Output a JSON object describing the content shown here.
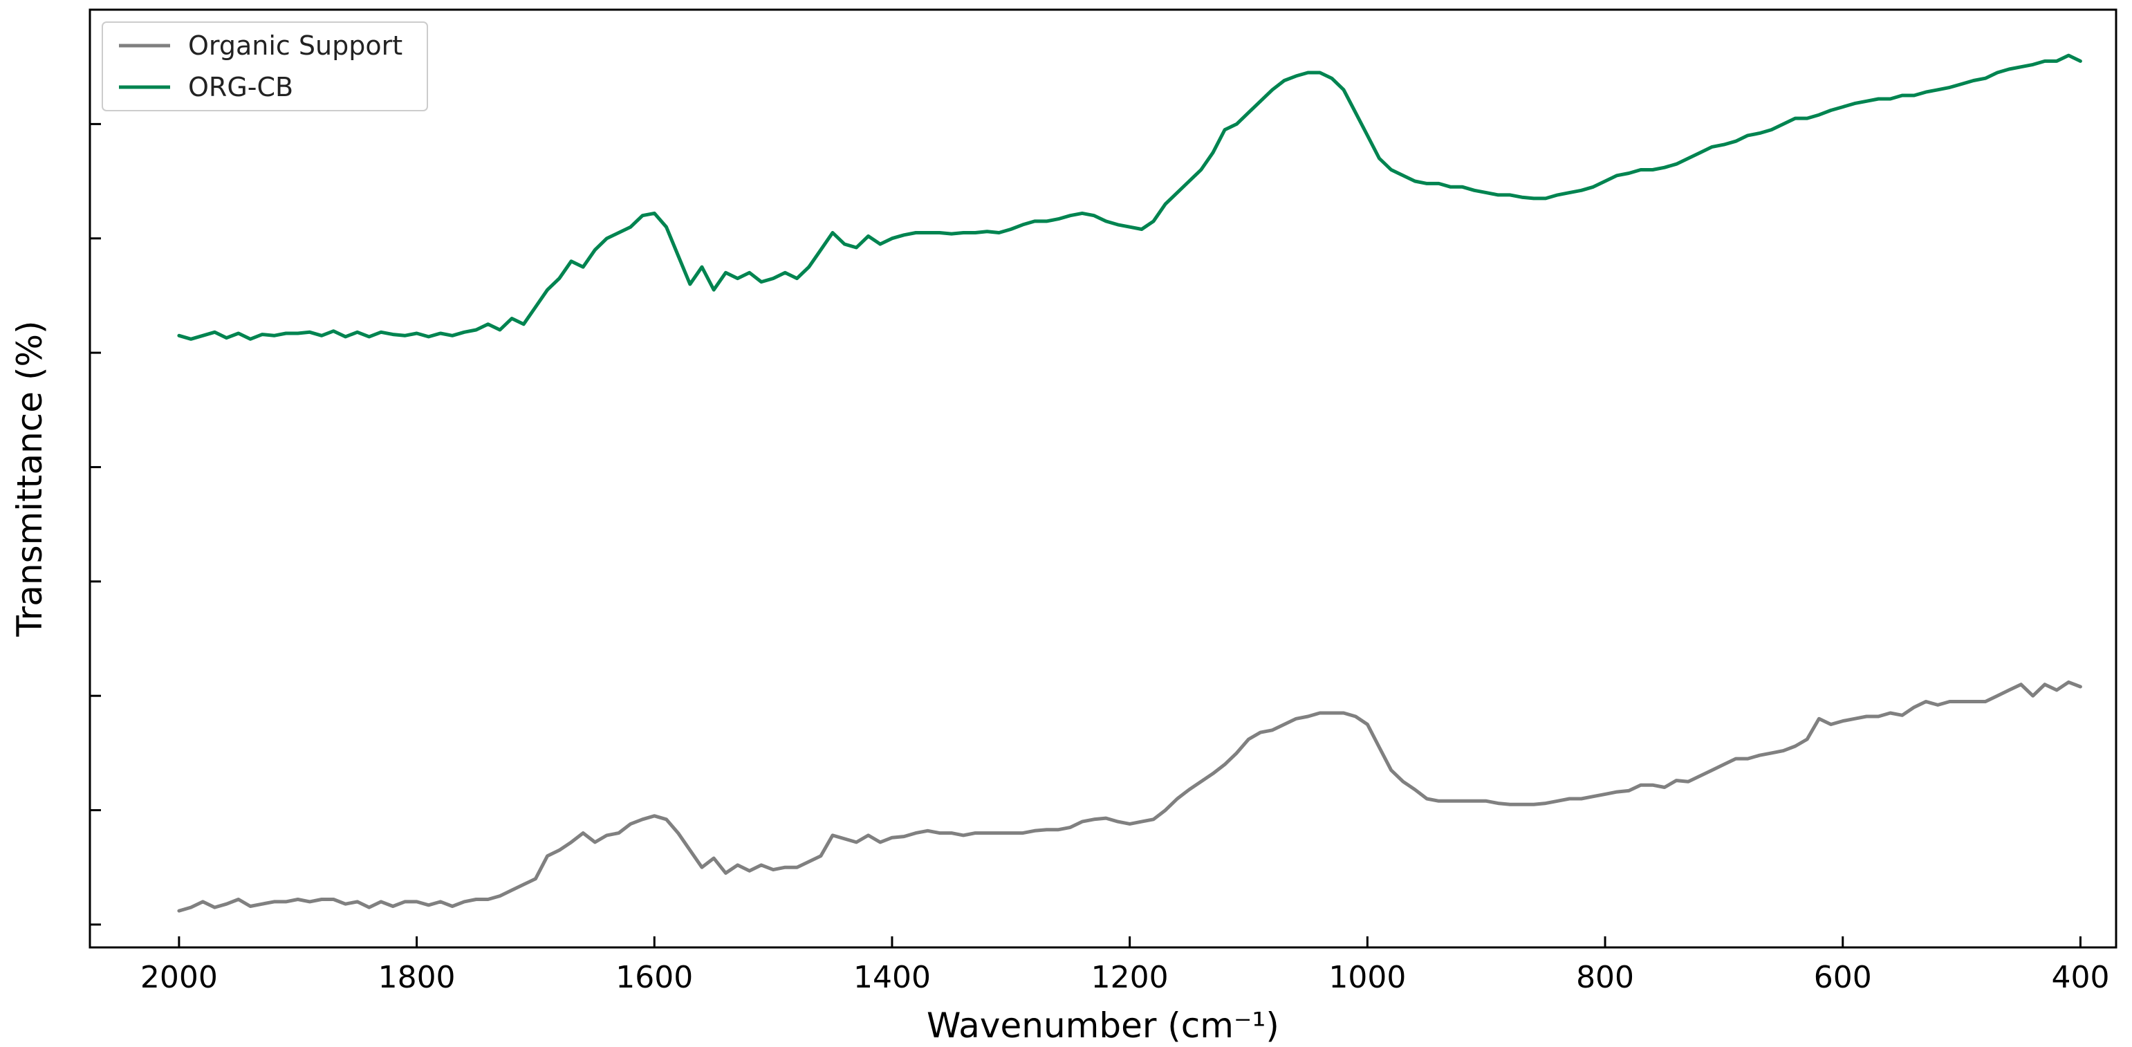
{
  "chart_data": {
    "type": "line",
    "title": "",
    "xlabel": "Wavenumber (cm⁻¹)",
    "ylabel": "Transmittance (%)",
    "xlim": [
      2075,
      370
    ],
    "x_reversed": true,
    "x_ticks": [
      2000,
      1800,
      1600,
      1400,
      1200,
      1000,
      800,
      600,
      400
    ],
    "ylim": [
      -0.2,
      8.0
    ],
    "y_ticks": [
      0,
      1,
      2,
      3,
      4,
      5,
      6,
      7
    ],
    "y_tick_labels_shown": false,
    "tick_direction": "in",
    "grid": false,
    "legend": {
      "position": "top-left"
    },
    "series": [
      {
        "name": "Organic Support",
        "color": "#808080",
        "x": [
          2000,
          1990,
          1980,
          1970,
          1960,
          1950,
          1940,
          1930,
          1920,
          1910,
          1900,
          1890,
          1880,
          1870,
          1860,
          1850,
          1840,
          1830,
          1820,
          1810,
          1800,
          1790,
          1780,
          1770,
          1760,
          1750,
          1740,
          1730,
          1720,
          1710,
          1700,
          1690,
          1680,
          1670,
          1660,
          1650,
          1640,
          1630,
          1620,
          1610,
          1600,
          1590,
          1580,
          1570,
          1560,
          1550,
          1540,
          1530,
          1520,
          1510,
          1500,
          1490,
          1480,
          1470,
          1460,
          1450,
          1440,
          1430,
          1420,
          1410,
          1400,
          1390,
          1380,
          1370,
          1360,
          1350,
          1340,
          1330,
          1320,
          1310,
          1300,
          1290,
          1280,
          1270,
          1260,
          1250,
          1240,
          1230,
          1220,
          1210,
          1200,
          1190,
          1180,
          1170,
          1160,
          1150,
          1140,
          1130,
          1120,
          1110,
          1100,
          1090,
          1080,
          1070,
          1060,
          1050,
          1040,
          1030,
          1020,
          1010,
          1000,
          990,
          980,
          970,
          960,
          950,
          940,
          930,
          920,
          910,
          900,
          890,
          880,
          870,
          860,
          850,
          840,
          830,
          820,
          810,
          800,
          790,
          780,
          770,
          760,
          750,
          740,
          730,
          720,
          710,
          700,
          690,
          680,
          670,
          660,
          650,
          640,
          630,
          620,
          610,
          600,
          590,
          580,
          570,
          560,
          550,
          540,
          530,
          520,
          510,
          500,
          490,
          480,
          470,
          460,
          450,
          440,
          430,
          420,
          410,
          400
        ],
        "y": [
          0.12,
          0.15,
          0.2,
          0.15,
          0.18,
          0.22,
          0.16,
          0.18,
          0.2,
          0.2,
          0.22,
          0.2,
          0.22,
          0.22,
          0.18,
          0.2,
          0.15,
          0.2,
          0.16,
          0.2,
          0.2,
          0.17,
          0.2,
          0.16,
          0.2,
          0.22,
          0.22,
          0.25,
          0.3,
          0.35,
          0.4,
          0.6,
          0.65,
          0.72,
          0.8,
          0.72,
          0.78,
          0.8,
          0.88,
          0.92,
          0.95,
          0.92,
          0.8,
          0.65,
          0.5,
          0.58,
          0.45,
          0.52,
          0.47,
          0.52,
          0.48,
          0.5,
          0.5,
          0.55,
          0.6,
          0.78,
          0.75,
          0.72,
          0.78,
          0.72,
          0.76,
          0.77,
          0.8,
          0.82,
          0.8,
          0.8,
          0.78,
          0.8,
          0.8,
          0.8,
          0.8,
          0.8,
          0.82,
          0.83,
          0.83,
          0.85,
          0.9,
          0.92,
          0.93,
          0.9,
          0.88,
          0.9,
          0.92,
          1.0,
          1.1,
          1.18,
          1.25,
          1.32,
          1.4,
          1.5,
          1.62,
          1.68,
          1.7,
          1.75,
          1.8,
          1.82,
          1.85,
          1.85,
          1.85,
          1.82,
          1.75,
          1.55,
          1.35,
          1.25,
          1.18,
          1.1,
          1.08,
          1.08,
          1.08,
          1.08,
          1.08,
          1.06,
          1.05,
          1.05,
          1.05,
          1.06,
          1.08,
          1.1,
          1.1,
          1.12,
          1.14,
          1.16,
          1.17,
          1.22,
          1.22,
          1.2,
          1.26,
          1.25,
          1.3,
          1.35,
          1.4,
          1.45,
          1.45,
          1.48,
          1.5,
          1.52,
          1.56,
          1.62,
          1.8,
          1.75,
          1.78,
          1.8,
          1.82,
          1.82,
          1.85,
          1.83,
          1.9,
          1.95,
          1.92,
          1.95,
          1.95,
          1.95,
          1.95,
          2.0,
          2.05,
          2.1,
          2.0,
          2.1,
          2.05,
          2.12,
          2.08
        ]
      },
      {
        "name": "ORG-CB",
        "color": "#008450",
        "x": [
          2000,
          1990,
          1980,
          1970,
          1960,
          1950,
          1940,
          1930,
          1920,
          1910,
          1900,
          1890,
          1880,
          1870,
          1860,
          1850,
          1840,
          1830,
          1820,
          1810,
          1800,
          1790,
          1780,
          1770,
          1760,
          1750,
          1740,
          1730,
          1720,
          1710,
          1700,
          1690,
          1680,
          1670,
          1660,
          1650,
          1640,
          1630,
          1620,
          1610,
          1600,
          1590,
          1580,
          1570,
          1560,
          1550,
          1540,
          1530,
          1520,
          1510,
          1500,
          1490,
          1480,
          1470,
          1460,
          1450,
          1440,
          1430,
          1420,
          1410,
          1400,
          1390,
          1380,
          1370,
          1360,
          1350,
          1340,
          1330,
          1320,
          1310,
          1300,
          1290,
          1280,
          1270,
          1260,
          1250,
          1240,
          1230,
          1220,
          1210,
          1200,
          1190,
          1180,
          1170,
          1160,
          1150,
          1140,
          1130,
          1120,
          1110,
          1100,
          1090,
          1080,
          1070,
          1060,
          1050,
          1040,
          1030,
          1020,
          1010,
          1000,
          990,
          980,
          970,
          960,
          950,
          940,
          930,
          920,
          910,
          900,
          890,
          880,
          870,
          860,
          850,
          840,
          830,
          820,
          810,
          800,
          790,
          780,
          770,
          760,
          750,
          740,
          730,
          720,
          710,
          700,
          690,
          680,
          670,
          660,
          650,
          640,
          630,
          620,
          610,
          600,
          590,
          580,
          570,
          560,
          550,
          540,
          530,
          520,
          510,
          500,
          490,
          480,
          470,
          460,
          450,
          440,
          430,
          420,
          410,
          400
        ],
        "y": [
          5.15,
          5.12,
          5.15,
          5.18,
          5.13,
          5.17,
          5.12,
          5.16,
          5.15,
          5.17,
          5.17,
          5.18,
          5.15,
          5.19,
          5.14,
          5.18,
          5.14,
          5.18,
          5.16,
          5.15,
          5.17,
          5.14,
          5.17,
          5.15,
          5.18,
          5.2,
          5.25,
          5.2,
          5.3,
          5.25,
          5.4,
          5.55,
          5.65,
          5.8,
          5.75,
          5.9,
          6.0,
          6.05,
          6.1,
          6.2,
          6.22,
          6.1,
          5.85,
          5.6,
          5.75,
          5.55,
          5.7,
          5.65,
          5.7,
          5.62,
          5.65,
          5.7,
          5.65,
          5.75,
          5.9,
          6.05,
          5.95,
          5.92,
          6.02,
          5.95,
          6.0,
          6.03,
          6.05,
          6.05,
          6.05,
          6.04,
          6.05,
          6.05,
          6.06,
          6.05,
          6.08,
          6.12,
          6.15,
          6.15,
          6.17,
          6.2,
          6.22,
          6.2,
          6.15,
          6.12,
          6.1,
          6.08,
          6.15,
          6.3,
          6.4,
          6.5,
          6.6,
          6.75,
          6.95,
          7.0,
          7.1,
          7.2,
          7.3,
          7.38,
          7.42,
          7.45,
          7.45,
          7.4,
          7.3,
          7.1,
          6.9,
          6.7,
          6.6,
          6.55,
          6.5,
          6.48,
          6.48,
          6.45,
          6.45,
          6.42,
          6.4,
          6.38,
          6.38,
          6.36,
          6.35,
          6.35,
          6.38,
          6.4,
          6.42,
          6.45,
          6.5,
          6.55,
          6.57,
          6.6,
          6.6,
          6.62,
          6.65,
          6.7,
          6.75,
          6.8,
          6.82,
          6.85,
          6.9,
          6.92,
          6.95,
          7.0,
          7.05,
          7.05,
          7.08,
          7.12,
          7.15,
          7.18,
          7.2,
          7.22,
          7.22,
          7.25,
          7.25,
          7.28,
          7.3,
          7.32,
          7.35,
          7.38,
          7.4,
          7.45,
          7.48,
          7.5,
          7.52,
          7.55,
          7.55,
          7.6,
          7.55
        ]
      }
    ]
  }
}
